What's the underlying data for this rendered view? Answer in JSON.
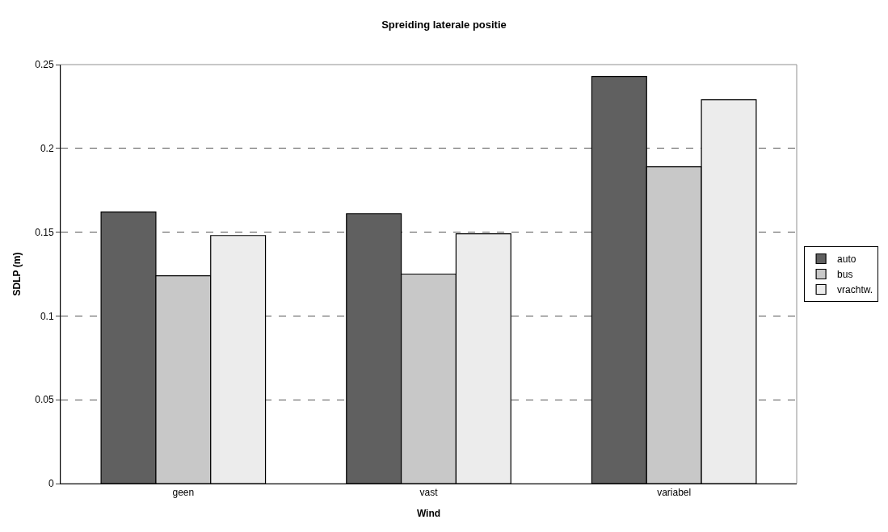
{
  "chart_data": {
    "type": "bar",
    "title": "Spreiding laterale positie",
    "xlabel": "Wind",
    "ylabel": "SDLP (m)",
    "categories": [
      "geen",
      "vast",
      "variabel"
    ],
    "series": [
      {
        "name": "auto",
        "color": "#606060",
        "values": [
          0.162,
          0.161,
          0.243
        ]
      },
      {
        "name": "bus",
        "color": "#c8c8c8",
        "values": [
          0.124,
          0.125,
          0.189
        ]
      },
      {
        "name": "vrachtw.",
        "color": "#ececec",
        "values": [
          0.148,
          0.149,
          0.229
        ]
      }
    ],
    "ylim": [
      0,
      0.25
    ],
    "yticks": [
      0,
      0.05,
      0.1,
      0.15,
      0.2,
      0.25
    ],
    "grid": "y",
    "legend": "right"
  }
}
